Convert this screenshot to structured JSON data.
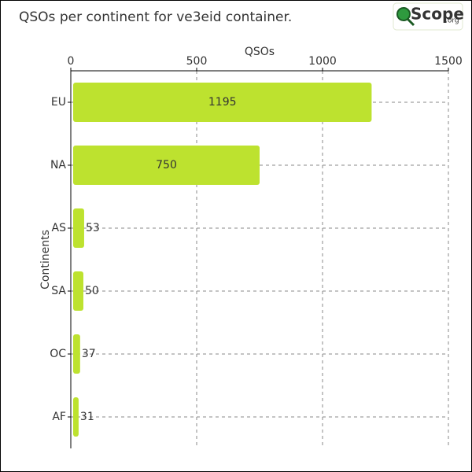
{
  "chart_data": {
    "type": "bar",
    "orientation": "horizontal",
    "title": "QSOs per continent for ve3eid container.",
    "logo": "Scope",
    "logo_suffix": ".org",
    "x_label": "QSOs",
    "y_label": "Continents",
    "categories": [
      "EU",
      "NA",
      "AS",
      "SA",
      "OC",
      "AF"
    ],
    "values": [
      1195,
      750,
      53,
      50,
      37,
      31
    ],
    "color": "#bde22f",
    "xlim": [
      0,
      1500
    ],
    "xticks": [
      0,
      500,
      1000,
      1500
    ],
    "grid": true
  }
}
